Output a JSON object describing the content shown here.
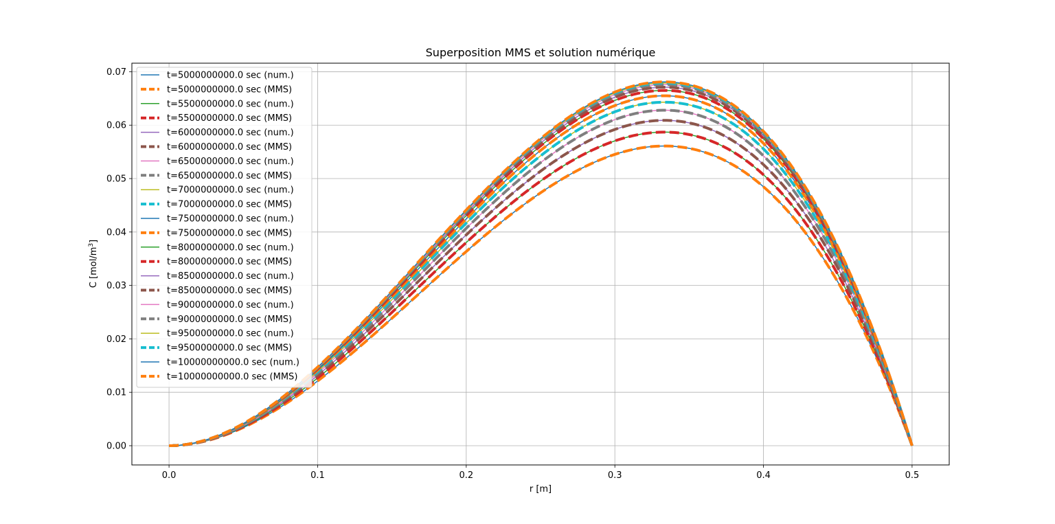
{
  "chart_data": {
    "type": "line",
    "title": "Superposition MMS et solution numérique",
    "xlabel": "r [m]",
    "ylabel_main": "C [mol/m",
    "ylabel_sup": "3",
    "ylabel_close": "]",
    "xlim": [
      -0.025,
      0.525
    ],
    "ylim": [
      -0.0036,
      0.0716
    ],
    "xticks": [
      0.0,
      0.1,
      0.2,
      0.3,
      0.4,
      0.5
    ],
    "xtick_labels": [
      "0.0",
      "0.1",
      "0.2",
      "0.3",
      "0.4",
      "0.5"
    ],
    "yticks": [
      0.0,
      0.01,
      0.02,
      0.03,
      0.04,
      0.05,
      0.06,
      0.07
    ],
    "ytick_labels": [
      "0.00",
      "0.01",
      "0.02",
      "0.03",
      "0.04",
      "0.05",
      "0.06",
      "0.07"
    ],
    "grid": true,
    "legend_position": "upper-left",
    "curve_shape": "C(r) proportional to r^2 * (0.5 - r), zero at r=0 and r=0.5, maximum near r=0.333",
    "peaks_by_time": [
      {
        "t": 5000000000.0,
        "peak_C": 0.0561
      },
      {
        "t": 5500000000.0,
        "peak_C": 0.0587
      },
      {
        "t": 6000000000.0,
        "peak_C": 0.0609
      },
      {
        "t": 6500000000.0,
        "peak_C": 0.0628
      },
      {
        "t": 7000000000.0,
        "peak_C": 0.0643
      },
      {
        "t": 7500000000.0,
        "peak_C": 0.0655
      },
      {
        "t": 8000000000.0,
        "peak_C": 0.0665
      },
      {
        "t": 8500000000.0,
        "peak_C": 0.0671
      },
      {
        "t": 9000000000.0,
        "peak_C": 0.0676
      },
      {
        "t": 9500000000.0,
        "peak_C": 0.0679
      },
      {
        "t": 10000000000.0,
        "peak_C": 0.0681
      }
    ],
    "series": [
      {
        "name": "t=5000000000.0 sec (num.)",
        "color": "#1f77b4",
        "style": "solid"
      },
      {
        "name": "t=5000000000.0 sec (MMS)",
        "color": "#ff7f0e",
        "style": "dashed"
      },
      {
        "name": "t=5500000000.0 sec (num.)",
        "color": "#2ca02c",
        "style": "solid"
      },
      {
        "name": "t=5500000000.0 sec (MMS)",
        "color": "#d62728",
        "style": "dashed"
      },
      {
        "name": "t=6000000000.0 sec (num.)",
        "color": "#9467bd",
        "style": "solid"
      },
      {
        "name": "t=6000000000.0 sec (MMS)",
        "color": "#8c564b",
        "style": "dashed"
      },
      {
        "name": "t=6500000000.0 sec (num.)",
        "color": "#e377c2",
        "style": "solid"
      },
      {
        "name": "t=6500000000.0 sec (MMS)",
        "color": "#7f7f7f",
        "style": "dashed"
      },
      {
        "name": "t=7000000000.0 sec (num.)",
        "color": "#bcbd22",
        "style": "solid"
      },
      {
        "name": "t=7000000000.0 sec (MMS)",
        "color": "#17becf",
        "style": "dashed"
      },
      {
        "name": "t=7500000000.0 sec (num.)",
        "color": "#1f77b4",
        "style": "solid"
      },
      {
        "name": "t=7500000000.0 sec (MMS)",
        "color": "#ff7f0e",
        "style": "dashed"
      },
      {
        "name": "t=8000000000.0 sec (num.)",
        "color": "#2ca02c",
        "style": "solid"
      },
      {
        "name": "t=8000000000.0 sec (MMS)",
        "color": "#d62728",
        "style": "dashed"
      },
      {
        "name": "t=8500000000.0 sec (num.)",
        "color": "#9467bd",
        "style": "solid"
      },
      {
        "name": "t=8500000000.0 sec (MMS)",
        "color": "#8c564b",
        "style": "dashed"
      },
      {
        "name": "t=9000000000.0 sec (num.)",
        "color": "#e377c2",
        "style": "solid"
      },
      {
        "name": "t=9000000000.0 sec (MMS)",
        "color": "#7f7f7f",
        "style": "dashed"
      },
      {
        "name": "t=9500000000.0 sec (num.)",
        "color": "#bcbd22",
        "style": "solid"
      },
      {
        "name": "t=9500000000.0 sec (MMS)",
        "color": "#17becf",
        "style": "dashed"
      },
      {
        "name": "t=10000000000.0 sec (num.)",
        "color": "#1f77b4",
        "style": "solid"
      },
      {
        "name": "t=10000000000.0 sec (MMS)",
        "color": "#ff7f0e",
        "style": "dashed"
      }
    ]
  }
}
